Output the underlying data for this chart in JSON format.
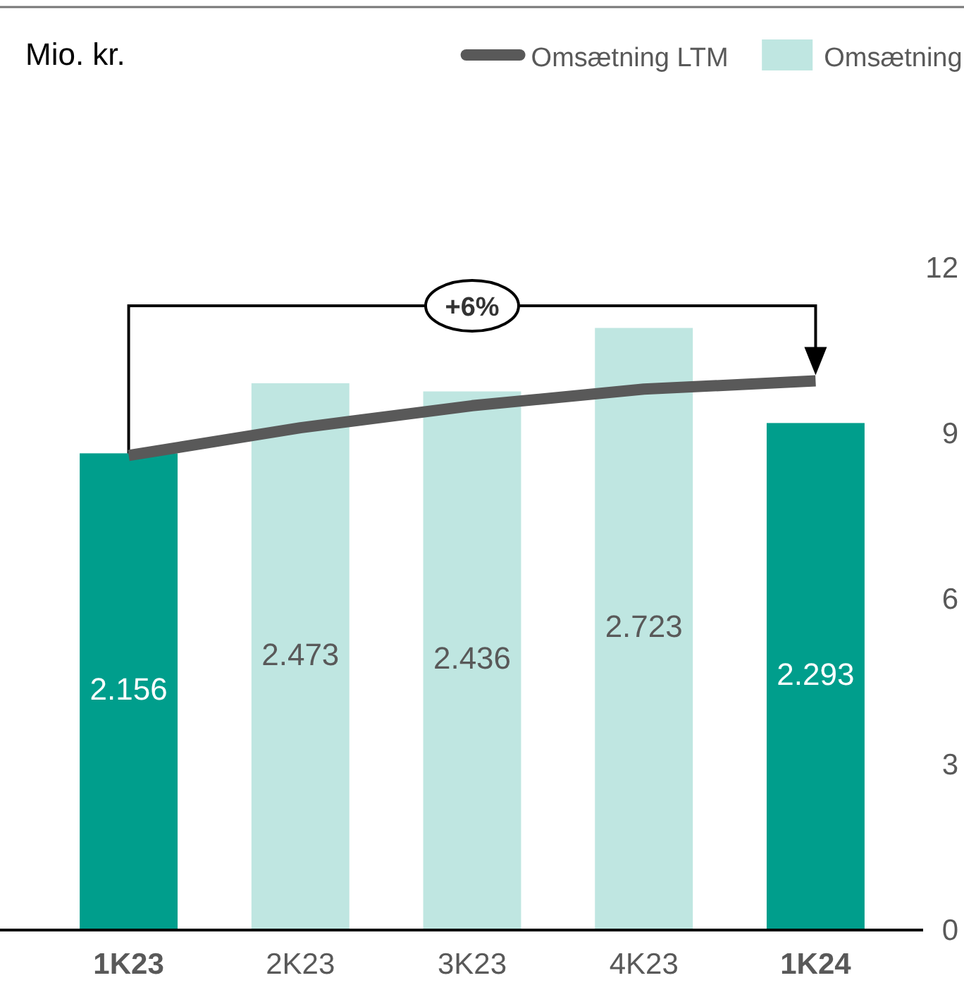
{
  "chart_data": {
    "type": "bar",
    "categories": [
      "1K23",
      "2K23",
      "3K23",
      "4K23",
      "1K24"
    ],
    "series": [
      {
        "name": "Omsætning",
        "color": "#bfe6e1",
        "colors": [
          "#009e8c",
          "#bfe6e1",
          "#bfe6e1",
          "#bfe6e1",
          "#009e8c"
        ],
        "values": [
          2.156,
          2.473,
          2.436,
          2.723,
          2.293
        ],
        "value_labels": [
          "2.156",
          "2.473",
          "2.436",
          "2.723",
          "2.293"
        ]
      },
      {
        "name": "Omsætning LTM",
        "type": "line",
        "axis": "y2",
        "color": "#595959",
        "values": [
          8.6,
          9.1,
          9.5,
          9.8,
          9.95
        ]
      }
    ],
    "y2lim": [
      0,
      12
    ],
    "y2ticks": [
      0,
      3,
      6,
      9,
      12
    ],
    "legend": "top right",
    "marker": "none",
    "line_style": "solid",
    "annotations": [
      "Mio. kr.",
      "+6%"
    ]
  }
}
